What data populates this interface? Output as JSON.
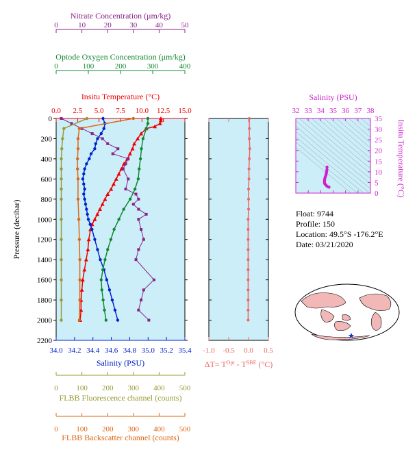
{
  "float_info": {
    "float": "Float:  9744",
    "profile": "Profile:  150",
    "location": "Location:  49.5°S  -176.2°E",
    "date": "Date:  03/21/2020"
  },
  "colors": {
    "temperature": "#ee0000",
    "salinity": "#0022cc",
    "oxygen": "#118833",
    "nitrate": "#882288",
    "fluorescence": "#999933",
    "backscatter": "#dd6611",
    "delta_t": "#ee6666",
    "panel_bg": "#cceef8",
    "ts_magenta": "#cc22cc"
  },
  "chart_data": [
    {
      "type": "line",
      "name": "profile-panel",
      "ylabel": "Pressure (decibar)",
      "yticks": [
        0,
        200,
        400,
        600,
        800,
        1000,
        1200,
        1400,
        1600,
        1800,
        2000,
        2200
      ],
      "ylim": [
        0,
        2200
      ],
      "y_inverted": true,
      "axes": {
        "nitrate": {
          "label": "Nitrate Concentration (μm/kg)",
          "range": [
            0,
            50
          ],
          "ticks": [
            0,
            10,
            20,
            30,
            40,
            50
          ],
          "position": "top-1"
        },
        "oxygen": {
          "label": "Optode Oxygen Concentration (μm/kg)",
          "range": [
            0,
            400
          ],
          "ticks": [
            0,
            100,
            200,
            300,
            400
          ],
          "position": "top-2"
        },
        "temperature": {
          "label": "Insitu Temperature (°C)",
          "range": [
            0,
            15
          ],
          "ticks": [
            "0.0",
            "2.5",
            "5.0",
            "7.5",
            "10.0",
            "12.5",
            "15.0"
          ],
          "position": "top-3"
        },
        "salinity": {
          "label": "Salinity (PSU)",
          "range": [
            34.0,
            35.4
          ],
          "ticks": [
            "34.0",
            "34.2",
            "34.4",
            "34.6",
            "34.8",
            "35.0",
            "35.2",
            "35.4"
          ],
          "position": "bottom-1"
        },
        "fluorescence": {
          "label": "FLBB Fluorescence channel (counts)",
          "range": [
            0,
            500
          ],
          "ticks": [
            0,
            100,
            200,
            300,
            400,
            500
          ],
          "position": "bottom-2"
        },
        "backscatter": {
          "label": "FLBB Backscatter channel (counts)",
          "range": [
            0,
            500
          ],
          "ticks": [
            0,
            100,
            200,
            300,
            400,
            500
          ],
          "position": "bottom-3"
        }
      },
      "series": [
        {
          "key": "temperature",
          "points": [
            [
              12.2,
              0
            ],
            [
              12.2,
              20
            ],
            [
              12.1,
              50
            ],
            [
              11.5,
              80
            ],
            [
              10.5,
              100
            ],
            [
              9.9,
              150
            ],
            [
              9.5,
              200
            ],
            [
              9.1,
              250
            ],
            [
              8.9,
              300
            ],
            [
              8.6,
              350
            ],
            [
              8.3,
              400
            ],
            [
              7.9,
              450
            ],
            [
              7.6,
              500
            ],
            [
              7.3,
              550
            ],
            [
              7.0,
              600
            ],
            [
              6.7,
              650
            ],
            [
              6.4,
              700
            ],
            [
              6.0,
              750
            ],
            [
              5.7,
              800
            ],
            [
              5.4,
              850
            ],
            [
              5.1,
              900
            ],
            [
              4.8,
              950
            ],
            [
              4.5,
              1000
            ],
            [
              4.2,
              1050
            ],
            [
              4.0,
              1100
            ],
            [
              3.8,
              1200
            ],
            [
              3.7,
              1300
            ],
            [
              3.5,
              1400
            ],
            [
              3.3,
              1500
            ],
            [
              3.1,
              1600
            ],
            [
              3.0,
              1700
            ],
            [
              2.9,
              1800
            ],
            [
              2.9,
              1900
            ],
            [
              2.8,
              2000
            ]
          ]
        },
        {
          "key": "salinity",
          "points": [
            [
              34.51,
              0
            ],
            [
              34.53,
              50
            ],
            [
              34.52,
              100
            ],
            [
              34.49,
              150
            ],
            [
              34.45,
              200
            ],
            [
              34.43,
              250
            ],
            [
              34.42,
              300
            ],
            [
              34.38,
              350
            ],
            [
              34.36,
              400
            ],
            [
              34.33,
              450
            ],
            [
              34.31,
              500
            ],
            [
              34.3,
              550
            ],
            [
              34.29,
              600
            ],
            [
              34.3,
              650
            ],
            [
              34.31,
              700
            ],
            [
              34.3,
              750
            ],
            [
              34.31,
              800
            ],
            [
              34.32,
              850
            ],
            [
              34.33,
              900
            ],
            [
              34.34,
              950
            ],
            [
              34.35,
              1000
            ],
            [
              34.37,
              1050
            ],
            [
              34.39,
              1100
            ],
            [
              34.42,
              1200
            ],
            [
              34.45,
              1300
            ],
            [
              34.48,
              1400
            ],
            [
              34.52,
              1500
            ],
            [
              34.55,
              1600
            ],
            [
              34.58,
              1700
            ],
            [
              34.61,
              1800
            ],
            [
              34.64,
              1900
            ],
            [
              34.67,
              2000
            ]
          ]
        },
        {
          "key": "oxygen",
          "points": [
            [
              285,
              0
            ],
            [
              285,
              50
            ],
            [
              280,
              100
            ],
            [
              270,
              200
            ],
            [
              265,
              300
            ],
            [
              262,
              400
            ],
            [
              258,
              500
            ],
            [
              255,
              600
            ],
            [
              245,
              700
            ],
            [
              230,
              800
            ],
            [
              210,
              900
            ],
            [
              195,
              1000
            ],
            [
              180,
              1100
            ],
            [
              170,
              1200
            ],
            [
              160,
              1300
            ],
            [
              152,
              1400
            ],
            [
              145,
              1500
            ],
            [
              140,
              1600
            ],
            [
              142,
              1700
            ],
            [
              146,
              1800
            ],
            [
              150,
              1900
            ],
            [
              155,
              2000
            ]
          ]
        },
        {
          "key": "nitrate",
          "points": [
            [
              2,
              0
            ],
            [
              6,
              50
            ],
            [
              10,
              100
            ],
            [
              14,
              150
            ],
            [
              18,
              200
            ],
            [
              20,
              250
            ],
            [
              24,
              300
            ],
            [
              22,
              350
            ],
            [
              28,
              400
            ],
            [
              27,
              450
            ],
            [
              26,
              500
            ],
            [
              28,
              600
            ],
            [
              27,
              700
            ],
            [
              31,
              750
            ],
            [
              32,
              800
            ],
            [
              30,
              850
            ],
            [
              32,
              900
            ],
            [
              35,
              950
            ],
            [
              32,
              1000
            ],
            [
              33,
              1100
            ],
            [
              34,
              1200
            ],
            [
              32,
              1300
            ],
            [
              31,
              1400
            ],
            [
              38,
              1600
            ],
            [
              34,
              1700
            ],
            [
              33,
              1800
            ],
            [
              32,
              1900
            ],
            [
              36,
              2000
            ]
          ]
        },
        {
          "key": "fluorescence",
          "points": [
            [
              120,
              0
            ],
            [
              30,
              100
            ],
            [
              25,
              200
            ],
            [
              22,
              300
            ],
            [
              20,
              400
            ],
            [
              20,
              500
            ],
            [
              20,
              600
            ],
            [
              20,
              700
            ],
            [
              20,
              800
            ],
            [
              20,
              1000
            ],
            [
              20,
              1200
            ],
            [
              20,
              1400
            ],
            [
              20,
              1600
            ],
            [
              20,
              1800
            ],
            [
              20,
              2000
            ]
          ]
        },
        {
          "key": "backscatter",
          "points": [
            [
              300,
              0
            ],
            [
              90,
              100
            ],
            [
              85,
              200
            ],
            [
              85,
              300
            ],
            [
              83,
              400
            ],
            [
              83,
              500
            ],
            [
              85,
              600
            ],
            [
              85,
              800
            ],
            [
              88,
              1000
            ],
            [
              90,
              1200
            ],
            [
              92,
              1400
            ],
            [
              92,
              1600
            ],
            [
              92,
              1800
            ],
            [
              90,
              2000
            ]
          ]
        }
      ]
    },
    {
      "type": "line",
      "name": "delta-t-panel",
      "xlabel": "ΔT= T",
      "xlabel_sup1": "Opt",
      "xlabel_mid": " - T",
      "xlabel_sup2": "SBE",
      "xlabel_unit": " (°C)",
      "xlim": [
        -1.0,
        0.5
      ],
      "xticks": [
        "-1.0",
        "-0.5",
        "0.0",
        "0.5"
      ],
      "ylim": [
        0,
        2200
      ],
      "points": [
        [
          0.02,
          0
        ],
        [
          0.02,
          100
        ],
        [
          0.02,
          200
        ],
        [
          0.03,
          300
        ],
        [
          0.02,
          400
        ],
        [
          0.01,
          500
        ],
        [
          0.01,
          600
        ],
        [
          0.0,
          700
        ],
        [
          0.0,
          800
        ],
        [
          0.0,
          900
        ],
        [
          -0.01,
          1000
        ],
        [
          -0.01,
          1100
        ],
        [
          -0.01,
          1200
        ],
        [
          -0.01,
          1300
        ],
        [
          -0.01,
          1400
        ],
        [
          -0.01,
          1500
        ],
        [
          -0.01,
          1600
        ],
        [
          -0.01,
          1700
        ],
        [
          -0.01,
          1800
        ],
        [
          -0.01,
          1900
        ],
        [
          -0.01,
          2000
        ]
      ]
    },
    {
      "type": "scatter",
      "name": "ts-panel",
      "xlabel": "Salinity (PSU)",
      "ylabel": "Insitu Temperature (°C)",
      "xlim": [
        32,
        38
      ],
      "ylim": [
        0,
        35
      ],
      "xticks": [
        "32",
        "33",
        "34",
        "35",
        "36",
        "37",
        "38"
      ],
      "yticks": [
        "0",
        "5",
        "10",
        "15",
        "20",
        "25",
        "30",
        "35"
      ],
      "points": [
        [
          34.51,
          12.2
        ],
        [
          34.5,
          11.0
        ],
        [
          34.48,
          10.0
        ],
        [
          34.45,
          9.2
        ],
        [
          34.42,
          8.4
        ],
        [
          34.37,
          7.6
        ],
        [
          34.33,
          6.8
        ],
        [
          34.31,
          6.0
        ],
        [
          34.3,
          5.4
        ],
        [
          34.31,
          4.8
        ],
        [
          34.34,
          4.3
        ],
        [
          34.4,
          3.9
        ],
        [
          34.48,
          3.4
        ],
        [
          34.58,
          3.0
        ],
        [
          34.67,
          2.8
        ]
      ]
    }
  ]
}
